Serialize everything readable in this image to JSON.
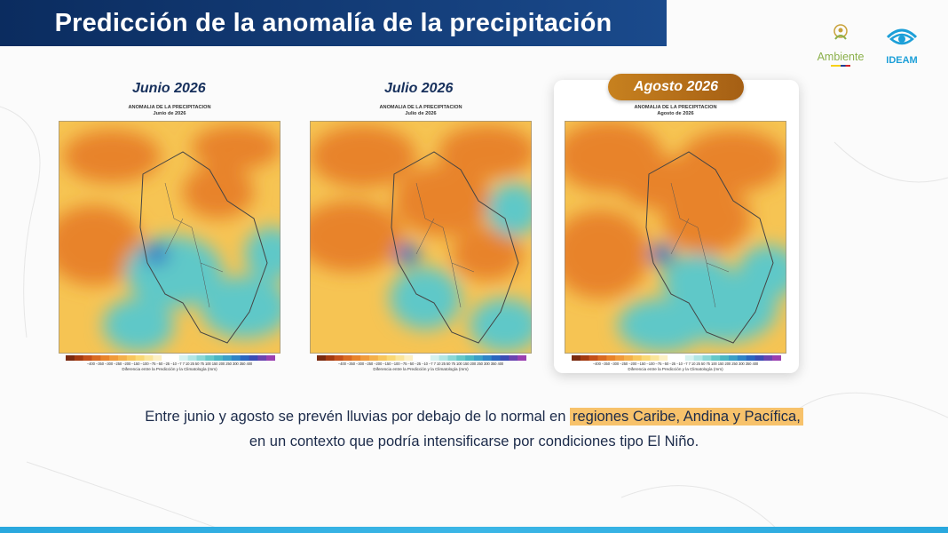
{
  "slide": {
    "title": "Predicción de la anomalía de la precipitación",
    "logos": {
      "ambiente": "Ambiente",
      "ideam": "IDEAM"
    }
  },
  "maps": [
    {
      "month_label": "Junio 2026",
      "header_line1": "ANOMALIA DE LA PRECIPITACION",
      "header_line2": "Junio de 2026",
      "colorbar_ticks": "−400 −350 −300 −250 −200 −150 −100 −75 −50 −25 −10 −7  7  10  25  50  75 100 150 200 250 300 350 400",
      "colorbar_label": "Diferencia entre la Predicción y la Climatología (mm)"
    },
    {
      "month_label": "Julio 2026",
      "header_line1": "ANOMALIA DE LA PRECIPITACION",
      "header_line2": "Julio de 2026",
      "colorbar_ticks": "−400 −350 −300 −250 −200 −150 −100 −75 −50 −25 −10 −7  7  10  25  50  75 100 150 200 250 300 350 400",
      "colorbar_label": "Diferencia entre la Predicción y la Climatología (mm)"
    },
    {
      "month_label": "Agosto 2026",
      "header_line1": "ANOMALIA DE LA PRECIPITACION",
      "header_line2": "Agosto de 2026",
      "colorbar_ticks": "−400 −350 −300 −250 −200 −150 −100 −75 −50 −25 −10 −7  7  10  25  50  75 100 150 200 250 300 350 400",
      "colorbar_label": "Diferencia entre la Predicción y la Climatología (mm)"
    }
  ],
  "caption": {
    "line1_prefix": "Entre junio y agosto se prevén lluvias por debajo de lo normal en ",
    "line1_highlight": "regiones Caribe, Andina y Pacífica,",
    "line2": "en un contexto que podría intensificarse por condiciones tipo El Niño."
  },
  "colors": {
    "title_bg": "#0b2c5f",
    "highlight_pill": "#b86e1a",
    "caption_highlight": "#f7c26b",
    "deficit": "#e8832a",
    "excess": "#5ec8c8"
  }
}
